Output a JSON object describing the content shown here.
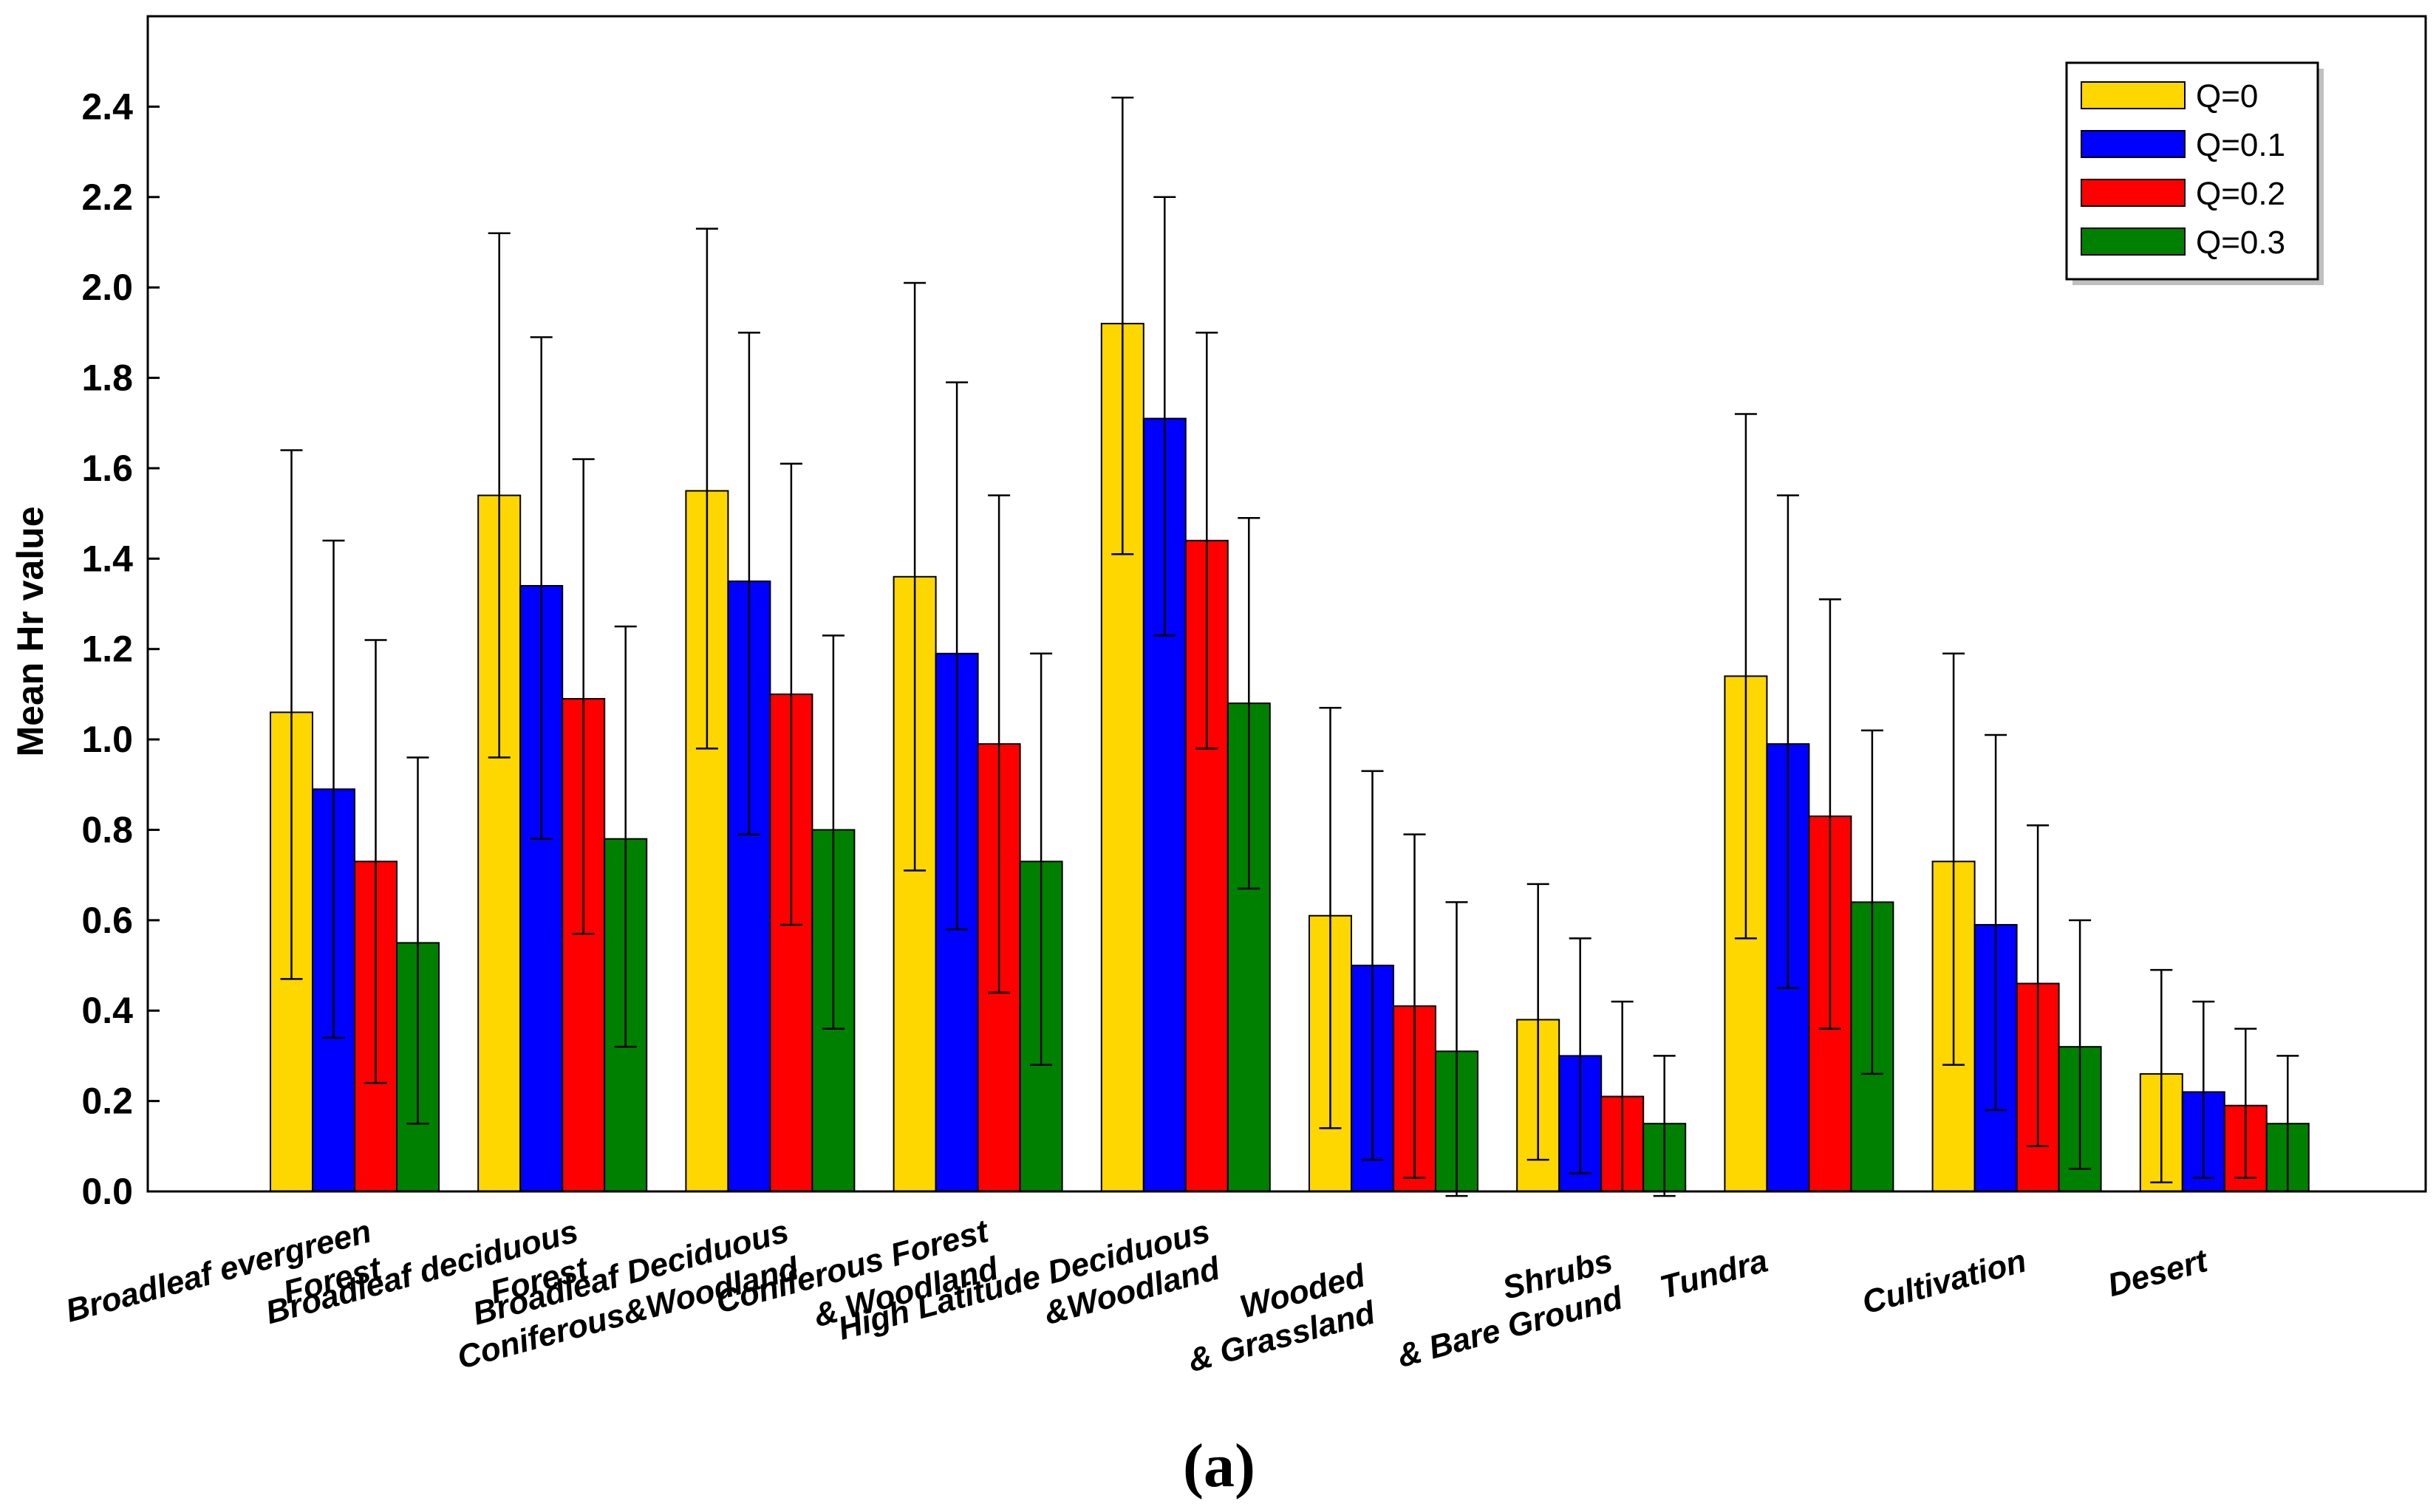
{
  "chart_data": {
    "type": "bar",
    "title": "",
    "xlabel": "",
    "ylabel": "Mean Hr value",
    "ylim": [
      0,
      2.6
    ],
    "yticks": [
      "0.0",
      "0.2",
      "0.4",
      "0.6",
      "0.8",
      "1.0",
      "1.2",
      "1.4",
      "1.6",
      "1.8",
      "2.0",
      "2.2",
      "2.4"
    ],
    "grid": false,
    "legend_position": "top-right",
    "categories": [
      [
        "Broadleaf evergreen",
        "Forest"
      ],
      [
        "Broadleaf deciduous",
        "Forest"
      ],
      [
        "Broadleaf Deciduous",
        "Coniferous&Woodland"
      ],
      [
        "Coniferous Forest",
        "& Woodland"
      ],
      [
        "High Latitude Deciduous",
        "&Woodland"
      ],
      [
        "Wooded",
        "& Grassland"
      ],
      [
        "Shrubs",
        "& Bare Ground"
      ],
      [
        "Tundra"
      ],
      [
        "Cultivation"
      ],
      [
        "Desert"
      ]
    ],
    "series": [
      {
        "name": "Q=0",
        "color": "#FFD700",
        "values": [
          1.06,
          1.54,
          1.55,
          1.36,
          1.92,
          0.61,
          0.38,
          1.14,
          0.73,
          0.26
        ],
        "err_high": [
          1.64,
          2.12,
          2.13,
          2.01,
          2.42,
          1.07,
          0.68,
          1.72,
          1.19,
          0.49
        ],
        "err_low": [
          0.47,
          0.96,
          0.98,
          0.71,
          1.41,
          0.14,
          0.07,
          0.56,
          0.28,
          0.02
        ]
      },
      {
        "name": "Q=0.1",
        "color": "#0000FF",
        "values": [
          0.89,
          1.34,
          1.35,
          1.19,
          1.71,
          0.5,
          0.3,
          0.99,
          0.59,
          0.22
        ],
        "err_high": [
          1.44,
          1.89,
          1.9,
          1.79,
          2.2,
          0.93,
          0.56,
          1.54,
          1.01,
          0.42
        ],
        "err_low": [
          0.34,
          0.78,
          0.79,
          0.58,
          1.23,
          0.07,
          0.04,
          0.45,
          0.18,
          0.03
        ]
      },
      {
        "name": "Q=0.2",
        "color": "#FF0000",
        "values": [
          0.73,
          1.09,
          1.1,
          0.99,
          1.44,
          0.41,
          0.21,
          0.83,
          0.46,
          0.19
        ],
        "err_high": [
          1.22,
          1.62,
          1.61,
          1.54,
          1.9,
          0.79,
          0.42,
          1.31,
          0.81,
          0.36
        ],
        "err_low": [
          0.24,
          0.57,
          0.59,
          0.44,
          0.98,
          0.03,
          0.0,
          0.36,
          0.1,
          0.03
        ]
      },
      {
        "name": "Q=0.3",
        "color": "#008000",
        "values": [
          0.55,
          0.78,
          0.8,
          0.73,
          1.08,
          0.31,
          0.15,
          0.64,
          0.32,
          0.15
        ],
        "err_high": [
          0.96,
          1.25,
          1.23,
          1.19,
          1.49,
          0.64,
          0.3,
          1.02,
          0.6,
          0.3
        ],
        "err_low": [
          0.15,
          0.32,
          0.36,
          0.28,
          0.67,
          -0.01,
          -0.01,
          0.26,
          0.05,
          0.0
        ]
      }
    ]
  },
  "caption": "(a)"
}
